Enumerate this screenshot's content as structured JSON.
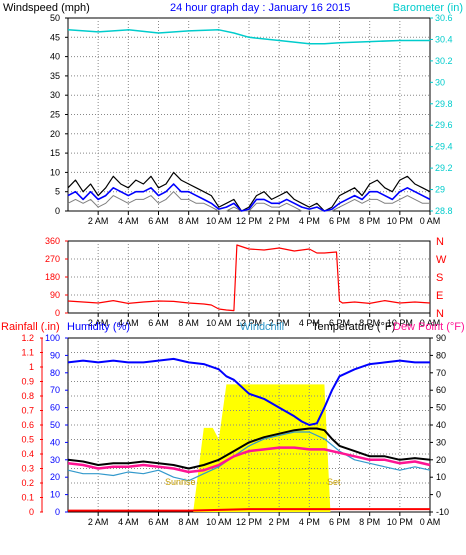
{
  "chart_data": [
    {
      "type": "line",
      "title": "24 hour graph day : January 16 2015",
      "ylabel": "Windspeed (mph)",
      "y2label": "Barometer (in)",
      "ylim": [
        0,
        50
      ],
      "y2lim": [
        28.8,
        30.6
      ],
      "yticks": [
        "0",
        "5",
        "10",
        "15",
        "20",
        "25",
        "30",
        "35",
        "40",
        "45",
        "50"
      ],
      "y2ticks": [
        "28.8",
        "29",
        "29.2",
        "29.4",
        "29.6",
        "29.8",
        "30",
        "30.2",
        "30.4",
        "30.6"
      ],
      "xticks": [
        "2 AM",
        "4 AM",
        "6 AM",
        "8 AM",
        "10 AM",
        "12 PM",
        "2 PM",
        "4 PM",
        "6 PM",
        "8 PM",
        "10 PM",
        "0 AM"
      ],
      "grid": true,
      "colors": {
        "gust": "#000000",
        "average": "#0000ff",
        "speed": "#808080",
        "barometer": "#00cccc"
      },
      "series": [
        {
          "key": "barometer",
          "x": [
            0,
            2,
            4,
            6,
            8,
            10,
            11,
            12,
            14,
            16,
            17,
            18,
            20,
            22,
            24
          ],
          "values": [
            30.49,
            30.47,
            30.49,
            30.46,
            30.48,
            30.49,
            30.46,
            30.42,
            30.39,
            30.36,
            30.36,
            30.37,
            30.38,
            30.39,
            30.39
          ]
        },
        {
          "key": "gust",
          "x": [
            0,
            0.5,
            1,
            1.5,
            2,
            2.5,
            3,
            3.5,
            4,
            4.5,
            5,
            5.5,
            6,
            6.5,
            7,
            7.5,
            8,
            8.5,
            9,
            9.5,
            10,
            10.5,
            11,
            11.5,
            12,
            12.5,
            13,
            13.5,
            14,
            14.5,
            15,
            15.5,
            16,
            16.5,
            17,
            17.5,
            18,
            18.5,
            19,
            19.5,
            20,
            20.5,
            21,
            21.5,
            22,
            22.5,
            23,
            23.5,
            24
          ],
          "values": [
            6,
            8,
            5,
            7,
            4,
            6,
            9,
            7,
            6,
            8,
            7,
            9,
            6,
            7,
            10,
            8,
            7,
            6,
            5,
            4,
            1,
            2,
            3,
            0,
            1,
            4,
            5,
            3,
            4,
            5,
            3,
            2,
            1,
            2,
            0,
            1,
            4,
            5,
            6,
            4,
            7,
            8,
            6,
            5,
            8,
            9,
            7,
            6,
            5
          ]
        },
        {
          "key": "average",
          "x": [
            0,
            0.5,
            1,
            1.5,
            2,
            2.5,
            3,
            3.5,
            4,
            4.5,
            5,
            5.5,
            6,
            6.5,
            7,
            7.5,
            8,
            8.5,
            9,
            9.5,
            10,
            10.5,
            11,
            11.5,
            12,
            12.5,
            13,
            13.5,
            14,
            14.5,
            15,
            15.5,
            16,
            16.5,
            17,
            17.5,
            18,
            18.5,
            19,
            19.5,
            20,
            20.5,
            21,
            21.5,
            22,
            22.5,
            23,
            23.5,
            24
          ],
          "values": [
            4,
            5,
            3,
            5,
            3,
            4,
            6,
            5,
            4,
            5,
            5,
            6,
            4,
            5,
            7,
            5,
            5,
            4,
            3,
            2,
            0.5,
            1,
            2,
            0,
            0.5,
            3,
            3,
            2,
            2,
            3,
            2,
            1,
            0.5,
            1,
            0,
            0.5,
            2,
            3,
            4,
            3,
            5,
            5,
            4,
            3,
            5,
            6,
            5,
            4,
            3
          ]
        },
        {
          "key": "speed",
          "x": [
            0,
            0.5,
            1,
            1.5,
            2,
            2.5,
            3,
            3.5,
            4,
            4.5,
            5,
            5.5,
            6,
            6.5,
            7,
            7.5,
            8,
            8.5,
            9,
            9.5,
            10,
            10.5,
            11,
            11.5,
            12,
            12.5,
            13,
            13.5,
            14,
            14.5,
            15,
            15.5,
            16,
            16.5,
            17,
            17.5,
            18,
            18.5,
            19,
            19.5,
            20,
            20.5,
            21,
            21.5,
            22,
            22.5,
            23,
            23.5,
            24
          ],
          "values": [
            2,
            3,
            2,
            3,
            1,
            2,
            4,
            3,
            2,
            3,
            3,
            4,
            2,
            3,
            5,
            3,
            3,
            2,
            2,
            1,
            0,
            0,
            1,
            0,
            0,
            2,
            2,
            1,
            1,
            2,
            1,
            0,
            0,
            0,
            0,
            0,
            1,
            2,
            3,
            2,
            3,
            3,
            2,
            2,
            3,
            4,
            3,
            2,
            2
          ]
        }
      ]
    },
    {
      "type": "line",
      "yticks": [
        "0",
        "90",
        "180",
        "270",
        "360"
      ],
      "y2ticks": [
        "N",
        "E",
        "S",
        "W",
        "N"
      ],
      "ylim": [
        0,
        360
      ],
      "xticks": [
        "2 AM",
        "4 AM",
        "6 AM",
        "8 AM",
        "10 AM",
        "12 PM",
        "2 PM",
        "4 PM",
        "6 PM",
        "8 PM",
        "10 PM",
        "0 AM"
      ],
      "grid": true,
      "colors": {
        "direction": "#ff0000"
      },
      "series": [
        {
          "key": "direction",
          "x": [
            0,
            1,
            2,
            3,
            4,
            5,
            6,
            7,
            8,
            9,
            9.5,
            10,
            10.5,
            11,
            11.2,
            12,
            13,
            14,
            15,
            16,
            16.5,
            17,
            17.8,
            18,
            18.2,
            19,
            20,
            21,
            22,
            23,
            24
          ],
          "values": [
            60,
            55,
            50,
            62,
            48,
            55,
            60,
            58,
            50,
            45,
            40,
            20,
            15,
            12,
            340,
            320,
            315,
            325,
            310,
            320,
            300,
            300,
            305,
            60,
            50,
            55,
            48,
            62,
            50,
            55,
            50
          ]
        }
      ]
    },
    {
      "type": "line",
      "ylabel": "Rainfall (.in)",
      "y1label": "Humidity (%)",
      "label3": "Windchill",
      "label4": "Temperature (°F)",
      "label5": "Dew Point (°F)",
      "rain_ticks": [
        "0",
        "0.1",
        "0.2",
        "0.3",
        "0.4",
        "0.5",
        "0.6",
        "0.7",
        "0.8",
        "0.9",
        "1",
        "1.1",
        "1.2"
      ],
      "hum_ticks": [
        "0",
        "10",
        "20",
        "30",
        "40",
        "50",
        "60",
        "70",
        "80",
        "90",
        "100"
      ],
      "temp_ticks": [
        "-10",
        "0",
        "10",
        "20",
        "30",
        "40",
        "50",
        "60",
        "70",
        "80",
        "90"
      ],
      "ylim_rain": [
        0,
        1.2
      ],
      "ylim_humidity": [
        0,
        100
      ],
      "ylim_temp": [
        -10,
        90
      ],
      "xticks": [
        "2 AM",
        "4 AM",
        "6 AM",
        "8 AM",
        "10 AM",
        "12 PM",
        "2 PM",
        "4 PM",
        "6 PM",
        "8 PM",
        "10 PM",
        "0 AM"
      ],
      "grid": true,
      "annotations": [
        "Sunrise",
        "Set"
      ],
      "colors": {
        "solar": "#ffff00",
        "humidity": "#0000ff",
        "temperature": "#000000",
        "dewpoint": "#ff1493",
        "windchill": "#3399cc",
        "rain": "#ff0000"
      },
      "series": [
        {
          "key": "solar",
          "x": [
            8.3,
            9.0,
            9.6,
            10.0,
            10.5,
            11.0,
            12.0,
            13.0,
            14.0,
            15.0,
            16.0,
            17.0,
            17.4
          ],
          "values": [
            0.0,
            0.58,
            0.58,
            0.5,
            0.88,
            0.88,
            0.88,
            0.88,
            0.88,
            0.88,
            0.88,
            0.88,
            0.0
          ]
        },
        {
          "key": "humidity",
          "x": [
            0,
            1,
            2,
            3,
            4,
            5,
            6,
            7,
            8,
            9,
            10,
            10.5,
            11,
            12,
            13,
            14,
            15,
            15.5,
            16,
            16.5,
            17,
            17.5,
            18,
            19,
            20,
            21,
            22,
            23,
            24
          ],
          "values": [
            86,
            87,
            86,
            87,
            86,
            86,
            87,
            88,
            86,
            85,
            82,
            78,
            76,
            68,
            65,
            60,
            55,
            52,
            50,
            51,
            60,
            70,
            78,
            82,
            85,
            86,
            87,
            86,
            86
          ]
        },
        {
          "key": "temperature",
          "x": [
            0,
            1,
            2,
            3,
            4,
            5,
            6,
            7,
            8,
            9,
            10,
            11,
            12,
            13,
            14,
            15,
            16,
            16.5,
            17,
            17.5,
            18,
            19,
            20,
            21,
            22,
            23,
            24
          ],
          "values": [
            20,
            19,
            17,
            18,
            18,
            19,
            18,
            17,
            15,
            17,
            20,
            25,
            30,
            33,
            35,
            37,
            38,
            38,
            37,
            32,
            28,
            25,
            22,
            22,
            20,
            21,
            20
          ]
        },
        {
          "key": "dewpoint",
          "x": [
            0,
            1,
            2,
            3,
            4,
            5,
            6,
            7,
            8,
            9,
            10,
            11,
            12,
            13,
            14,
            15,
            16,
            17,
            18,
            19,
            20,
            21,
            22,
            23,
            24
          ],
          "values": [
            18,
            17,
            15,
            16,
            16,
            17,
            16,
            15,
            13,
            14,
            17,
            22,
            25,
            26,
            27,
            27,
            26,
            26,
            24,
            22,
            20,
            20,
            18,
            19,
            17
          ]
        },
        {
          "key": "windchill",
          "x": [
            0,
            1,
            2,
            3,
            4,
            5,
            6,
            7,
            8,
            9,
            10,
            11,
            12,
            13,
            14,
            15,
            16,
            17,
            18,
            19,
            20,
            21,
            22,
            23,
            24
          ],
          "values": [
            14,
            12,
            12,
            11,
            13,
            12,
            14,
            10,
            8,
            12,
            16,
            22,
            28,
            32,
            34,
            36,
            36,
            32,
            25,
            20,
            18,
            16,
            14,
            16,
            14
          ]
        },
        {
          "key": "rain",
          "x": [
            0,
            8,
            12,
            24
          ],
          "values": [
            0.01,
            0.01,
            0.02,
            0.02
          ]
        }
      ]
    }
  ]
}
